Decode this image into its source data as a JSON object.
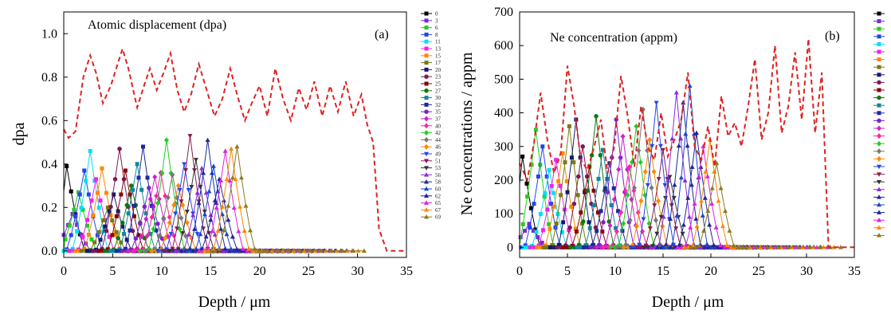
{
  "chart_data": [
    {
      "panel": "(a)",
      "type": "line",
      "title": "Atomic displacement (dpa)",
      "xlabel": "Depth / μm",
      "ylabel": "dpa",
      "xlim": [
        0,
        35
      ],
      "ylim": [
        -0.03,
        1.1
      ],
      "xticks": [
        "0",
        "5",
        "10",
        "15",
        "20",
        "25",
        "30",
        "35"
      ],
      "yticks": [
        "0.0",
        "0.2",
        "0.4",
        "0.6",
        "0.8",
        "1.0"
      ],
      "legend_position": "right-outside",
      "series": [
        {
          "name": "0",
          "peak_x": 0.3,
          "peak_y": 0.39,
          "color": "#000000",
          "marker": "square"
        },
        {
          "name": "3",
          "peak_x": 0.9,
          "peak_y": 0.17,
          "color": "#7a2bd6",
          "marker": "square"
        },
        {
          "name": "6",
          "peak_x": 1.5,
          "peak_y": 0.27,
          "color": "#22cc22",
          "marker": "square"
        },
        {
          "name": "8",
          "peak_x": 2.1,
          "peak_y": 0.37,
          "color": "#2244ee",
          "marker": "square"
        },
        {
          "name": "11",
          "peak_x": 2.7,
          "peak_y": 0.46,
          "color": "#00e0f0",
          "marker": "square"
        },
        {
          "name": "13",
          "peak_x": 3.3,
          "peak_y": 0.33,
          "color": "#ee22ee",
          "marker": "square"
        },
        {
          "name": "15",
          "peak_x": 3.9,
          "peak_y": 0.38,
          "color": "#ff8800",
          "marker": "square"
        },
        {
          "name": "17",
          "peak_x": 4.5,
          "peak_y": 0.2,
          "color": "#7a7a10",
          "marker": "square"
        },
        {
          "name": "20",
          "peak_x": 5.1,
          "peak_y": 0.26,
          "color": "#101a6e",
          "marker": "square"
        },
        {
          "name": "23",
          "peak_x": 5.7,
          "peak_y": 0.47,
          "color": "#7a1a55",
          "marker": "circle"
        },
        {
          "name": "25",
          "peak_x": 6.3,
          "peak_y": 0.37,
          "color": "#8b0000",
          "marker": "square"
        },
        {
          "name": "27",
          "peak_x": 6.9,
          "peak_y": 0.3,
          "color": "#117711",
          "marker": "circle"
        },
        {
          "name": "30",
          "peak_x": 7.5,
          "peak_y": 0.4,
          "color": "#118899",
          "marker": "square"
        },
        {
          "name": "32",
          "peak_x": 8.1,
          "peak_y": 0.48,
          "color": "#1a2aa0",
          "marker": "square"
        },
        {
          "name": "35",
          "peak_x": 8.7,
          "peak_y": 0.29,
          "color": "#7a22cc",
          "marker": "circle"
        },
        {
          "name": "37",
          "peak_x": 9.3,
          "peak_y": 0.34,
          "color": "#cc22cc",
          "marker": "diamond"
        },
        {
          "name": "40",
          "peak_x": 9.9,
          "peak_y": 0.36,
          "color": "#ff22aa",
          "marker": "diamond"
        },
        {
          "name": "42",
          "peak_x": 10.5,
          "peak_y": 0.51,
          "color": "#22cc22",
          "marker": "diamond"
        },
        {
          "name": "44",
          "peak_x": 11.1,
          "peak_y": 0.35,
          "color": "#777777",
          "marker": "diamond"
        },
        {
          "name": "46",
          "peak_x": 11.7,
          "peak_y": 0.3,
          "color": "#ff8800",
          "marker": "diamond"
        },
        {
          "name": "49",
          "peak_x": 12.3,
          "peak_y": 0.4,
          "color": "#2244ee",
          "marker": "triangle-down"
        },
        {
          "name": "51",
          "peak_x": 12.9,
          "peak_y": 0.53,
          "color": "#8b1a4e",
          "marker": "triangle-down"
        },
        {
          "name": "53",
          "peak_x": 13.5,
          "peak_y": 0.42,
          "color": "#333333",
          "marker": "triangle-down"
        },
        {
          "name": "56",
          "peak_x": 14.1,
          "peak_y": 0.38,
          "color": "#8a2be2",
          "marker": "triangle"
        },
        {
          "name": "58",
          "peak_x": 14.7,
          "peak_y": 0.51,
          "color": "#1a2a9a",
          "marker": "triangle"
        },
        {
          "name": "60",
          "peak_x": 15.3,
          "peak_y": 0.39,
          "color": "#1a44cc",
          "marker": "triangle"
        },
        {
          "name": "62",
          "peak_x": 15.9,
          "peak_y": 0.33,
          "color": "#222299",
          "marker": "triangle"
        },
        {
          "name": "65",
          "peak_x": 16.5,
          "peak_y": 0.46,
          "color": "#dd22dd",
          "marker": "triangle"
        },
        {
          "name": "67",
          "peak_x": 17.1,
          "peak_y": 0.47,
          "color": "#ff8800",
          "marker": "triangle"
        },
        {
          "name": "69",
          "peak_x": 17.7,
          "peak_y": 0.48,
          "color": "#8b7a22",
          "marker": "triangle"
        }
      ],
      "envelope": {
        "color": "#dd2222",
        "x": [
          0,
          0.5,
          1.2,
          2,
          2.7,
          3.3,
          4,
          4.8,
          5.5,
          6,
          6.6,
          7.5,
          8.2,
          8.8,
          9.5,
          10.2,
          10.9,
          11.6,
          12.3,
          13,
          13.8,
          14.6,
          15.4,
          16.2,
          17,
          17.7,
          18.5,
          19.2,
          20,
          20.8,
          21.6,
          22.4,
          23.2,
          24,
          24.8,
          25.6,
          26.4,
          27.2,
          28,
          28.8,
          29.6,
          30.4,
          31,
          31.6,
          32.2,
          33,
          35
        ],
        "y": [
          0.56,
          0.52,
          0.55,
          0.8,
          0.9,
          0.82,
          0.68,
          0.76,
          0.86,
          0.93,
          0.84,
          0.66,
          0.76,
          0.84,
          0.74,
          0.82,
          0.91,
          0.74,
          0.64,
          0.72,
          0.86,
          0.74,
          0.62,
          0.7,
          0.84,
          0.72,
          0.6,
          0.68,
          0.76,
          0.62,
          0.84,
          0.7,
          0.6,
          0.75,
          0.65,
          0.78,
          0.62,
          0.76,
          0.64,
          0.78,
          0.62,
          0.72,
          0.58,
          0.5,
          0.1,
          0.0,
          0.0
        ]
      }
    },
    {
      "panel": "(b)",
      "type": "line",
      "title": "Ne concentration (appm)",
      "xlabel": "Depth / μm",
      "ylabel": "Ne concentrations / appm",
      "xlim": [
        0,
        35
      ],
      "ylim": [
        -30,
        700
      ],
      "xticks": [
        "0",
        "5",
        "10",
        "15",
        "20",
        "25",
        "30",
        "35"
      ],
      "yticks": [
        "0",
        "100",
        "200",
        "300",
        "400",
        "500",
        "600",
        "700"
      ],
      "legend_position": "right-outside",
      "series": [
        {
          "peak_x": 0.3,
          "peak_y": 270,
          "color": "#000000",
          "marker": "square"
        },
        {
          "peak_x": 1.0,
          "peak_y": 70,
          "color": "#7a2bd6",
          "marker": "square"
        },
        {
          "peak_x": 1.7,
          "peak_y": 350,
          "color": "#22cc22",
          "marker": "square"
        },
        {
          "peak_x": 2.4,
          "peak_y": 300,
          "color": "#2244ee",
          "marker": "square"
        },
        {
          "peak_x": 3.1,
          "peak_y": 230,
          "color": "#00e0f0",
          "marker": "square"
        },
        {
          "peak_x": 3.8,
          "peak_y": 260,
          "color": "#ee22ee",
          "marker": "square"
        },
        {
          "peak_x": 4.5,
          "peak_y": 280,
          "color": "#ff8800",
          "marker": "square"
        },
        {
          "peak_x": 5.2,
          "peak_y": 360,
          "color": "#7a7a10",
          "marker": "square"
        },
        {
          "peak_x": 5.9,
          "peak_y": 380,
          "color": "#101a6e",
          "marker": "square"
        },
        {
          "peak_x": 6.6,
          "peak_y": 300,
          "color": "#7a1a55",
          "marker": "circle"
        },
        {
          "peak_x": 7.3,
          "peak_y": 240,
          "color": "#8b0000",
          "marker": "square"
        },
        {
          "peak_x": 8.0,
          "peak_y": 390,
          "color": "#117711",
          "marker": "circle"
        },
        {
          "peak_x": 8.7,
          "peak_y": 290,
          "color": "#118899",
          "marker": "square"
        },
        {
          "peak_x": 9.4,
          "peak_y": 250,
          "color": "#1a2aa0",
          "marker": "square"
        },
        {
          "peak_x": 10.1,
          "peak_y": 380,
          "color": "#7a22cc",
          "marker": "circle"
        },
        {
          "peak_x": 10.8,
          "peak_y": 330,
          "color": "#cc22cc",
          "marker": "diamond"
        },
        {
          "peak_x": 11.5,
          "peak_y": 240,
          "color": "#ff22aa",
          "marker": "diamond"
        },
        {
          "peak_x": 12.2,
          "peak_y": 360,
          "color": "#22cc22",
          "marker": "diamond"
        },
        {
          "peak_x": 12.9,
          "peak_y": 410,
          "color": "#777777",
          "marker": "diamond"
        },
        {
          "peak_x": 13.6,
          "peak_y": 320,
          "color": "#ff8800",
          "marker": "diamond"
        },
        {
          "peak_x": 14.3,
          "peak_y": 430,
          "color": "#2244ee",
          "marker": "triangle-down"
        },
        {
          "peak_x": 15.0,
          "peak_y": 290,
          "color": "#8b1a4e",
          "marker": "triangle-down"
        },
        {
          "peak_x": 15.7,
          "peak_y": 210,
          "color": "#333333",
          "marker": "triangle-down"
        },
        {
          "peak_x": 16.4,
          "peak_y": 460,
          "color": "#8a2be2",
          "marker": "triangle"
        },
        {
          "peak_x": 17.1,
          "peak_y": 430,
          "color": "#1a2a9a",
          "marker": "triangle"
        },
        {
          "peak_x": 17.8,
          "peak_y": 480,
          "color": "#1a44cc",
          "marker": "triangle"
        },
        {
          "peak_x": 18.5,
          "peak_y": 340,
          "color": "#222299",
          "marker": "triangle"
        },
        {
          "peak_x": 19.2,
          "peak_y": 300,
          "color": "#dd22dd",
          "marker": "triangle"
        },
        {
          "peak_x": 19.9,
          "peak_y": 320,
          "color": "#ff8800",
          "marker": "triangle"
        },
        {
          "peak_x": 20.6,
          "peak_y": 250,
          "color": "#8b7a22",
          "marker": "triangle"
        }
      ],
      "envelope": {
        "color": "#dd2222",
        "x": [
          0,
          0.8,
          1.5,
          2.2,
          2.9,
          3.6,
          4.3,
          5.0,
          5.7,
          6.4,
          7.1,
          7.8,
          8.5,
          9.2,
          9.9,
          10.6,
          11.3,
          12.0,
          12.7,
          13.4,
          14.1,
          14.8,
          15.5,
          16.2,
          16.9,
          17.6,
          18.3,
          19.0,
          19.7,
          20.4,
          21.1,
          21.8,
          22.5,
          23.2,
          23.9,
          24.6,
          25.3,
          26.0,
          26.7,
          27.4,
          28.1,
          28.8,
          29.5,
          30.2,
          30.9,
          31.6,
          32.3,
          35
        ],
        "y": [
          250,
          200,
          310,
          460,
          320,
          220,
          280,
          540,
          420,
          260,
          230,
          300,
          380,
          220,
          300,
          510,
          390,
          240,
          420,
          300,
          260,
          400,
          270,
          320,
          380,
          520,
          300,
          260,
          360,
          240,
          450,
          330,
          370,
          300,
          420,
          560,
          320,
          400,
          600,
          340,
          420,
          580,
          380,
          620,
          340,
          520,
          0,
          0
        ]
      }
    }
  ]
}
